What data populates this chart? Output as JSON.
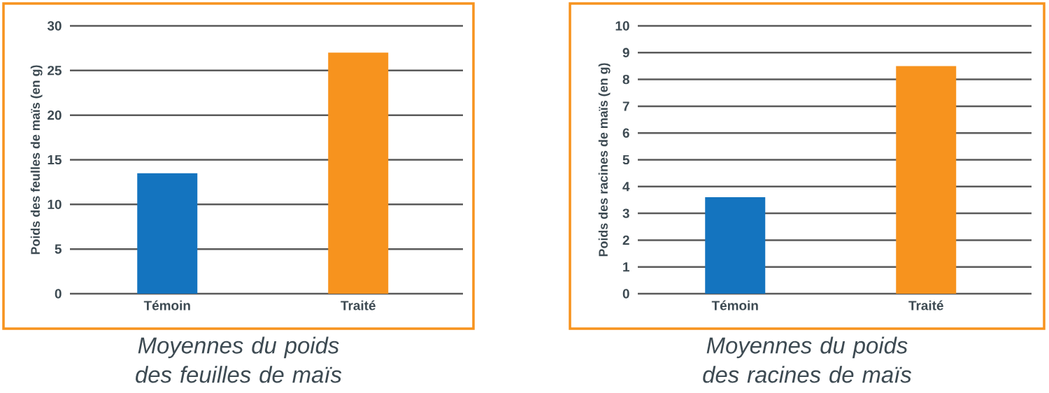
{
  "chart_data": [
    {
      "type": "bar",
      "title": "Moyennes du poids des feuilles de maïs",
      "ylabel": "Poids des feulles de maïs (en g)",
      "categories": [
        "Témoin",
        "Traité"
      ],
      "values": [
        13.5,
        27
      ],
      "colors": [
        "#1474bf",
        "#f7931e"
      ],
      "ylim": [
        0,
        30
      ],
      "yticks": [
        0,
        5,
        10,
        15,
        20,
        25,
        30
      ],
      "grid": "y"
    },
    {
      "type": "bar",
      "title": "Moyennes du poids des racines de maïs",
      "ylabel": "Poids des racines de maïs (en g)",
      "categories": [
        "Témoin",
        "Traité"
      ],
      "values": [
        3.6,
        8.5
      ],
      "colors": [
        "#1474bf",
        "#f7931e"
      ],
      "ylim": [
        0,
        10
      ],
      "yticks": [
        0,
        1,
        2,
        3,
        4,
        5,
        6,
        7,
        8,
        9,
        10
      ],
      "grid": "y"
    }
  ]
}
